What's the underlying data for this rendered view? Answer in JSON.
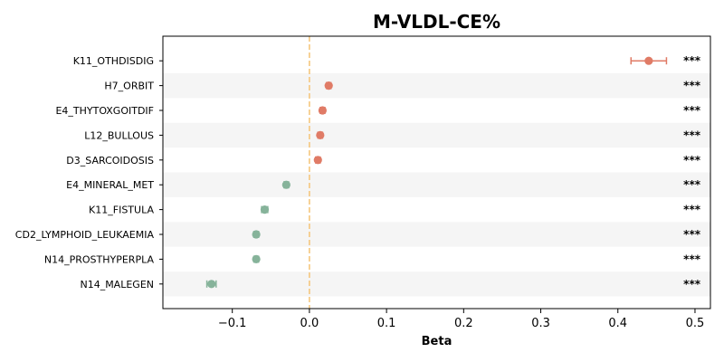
{
  "chart_data": {
    "type": "scatter",
    "title": "M-VLDL-CE%",
    "xlabel": "Beta",
    "ylabel": "",
    "xlim": [
      -0.19,
      0.52
    ],
    "xticks": [
      -0.1,
      0.0,
      0.1,
      0.2,
      0.3,
      0.4,
      0.5
    ],
    "xtick_labels": [
      "−0.1",
      "0.0",
      "0.1",
      "0.2",
      "0.3",
      "0.4",
      "0.5"
    ],
    "reference_line": 0.0,
    "colors": {
      "positive": "#e07b66",
      "negative": "#86b39a",
      "reference": "#f5c77e",
      "band": "#f5f5f5"
    },
    "categories": [
      "K11_OTHDISDIG",
      "H7_ORBIT",
      "E4_THYTOXGOITDIF",
      "L12_BULLOUS",
      "D3_SARCOIDOSIS",
      "E4_MINERAL_MET",
      "K11_FISTULA",
      "CD2_LYMPHOID_LEUKAEMIA",
      "N14_PROSTHYPERPLA",
      "N14_MALEGEN"
    ],
    "values": [
      0.44,
      0.025,
      0.017,
      0.014,
      0.011,
      -0.03,
      -0.058,
      -0.069,
      -0.069,
      -0.127
    ],
    "ci_low": [
      0.417,
      0.022,
      0.014,
      0.011,
      0.008,
      -0.033,
      -0.062,
      -0.072,
      -0.072,
      -0.133
    ],
    "ci_high": [
      0.463,
      0.028,
      0.02,
      0.017,
      0.014,
      -0.027,
      -0.054,
      -0.066,
      -0.066,
      -0.121
    ],
    "significance": [
      "***",
      "***",
      "***",
      "***",
      "***",
      "***",
      "***",
      "***",
      "***",
      "***"
    ]
  }
}
